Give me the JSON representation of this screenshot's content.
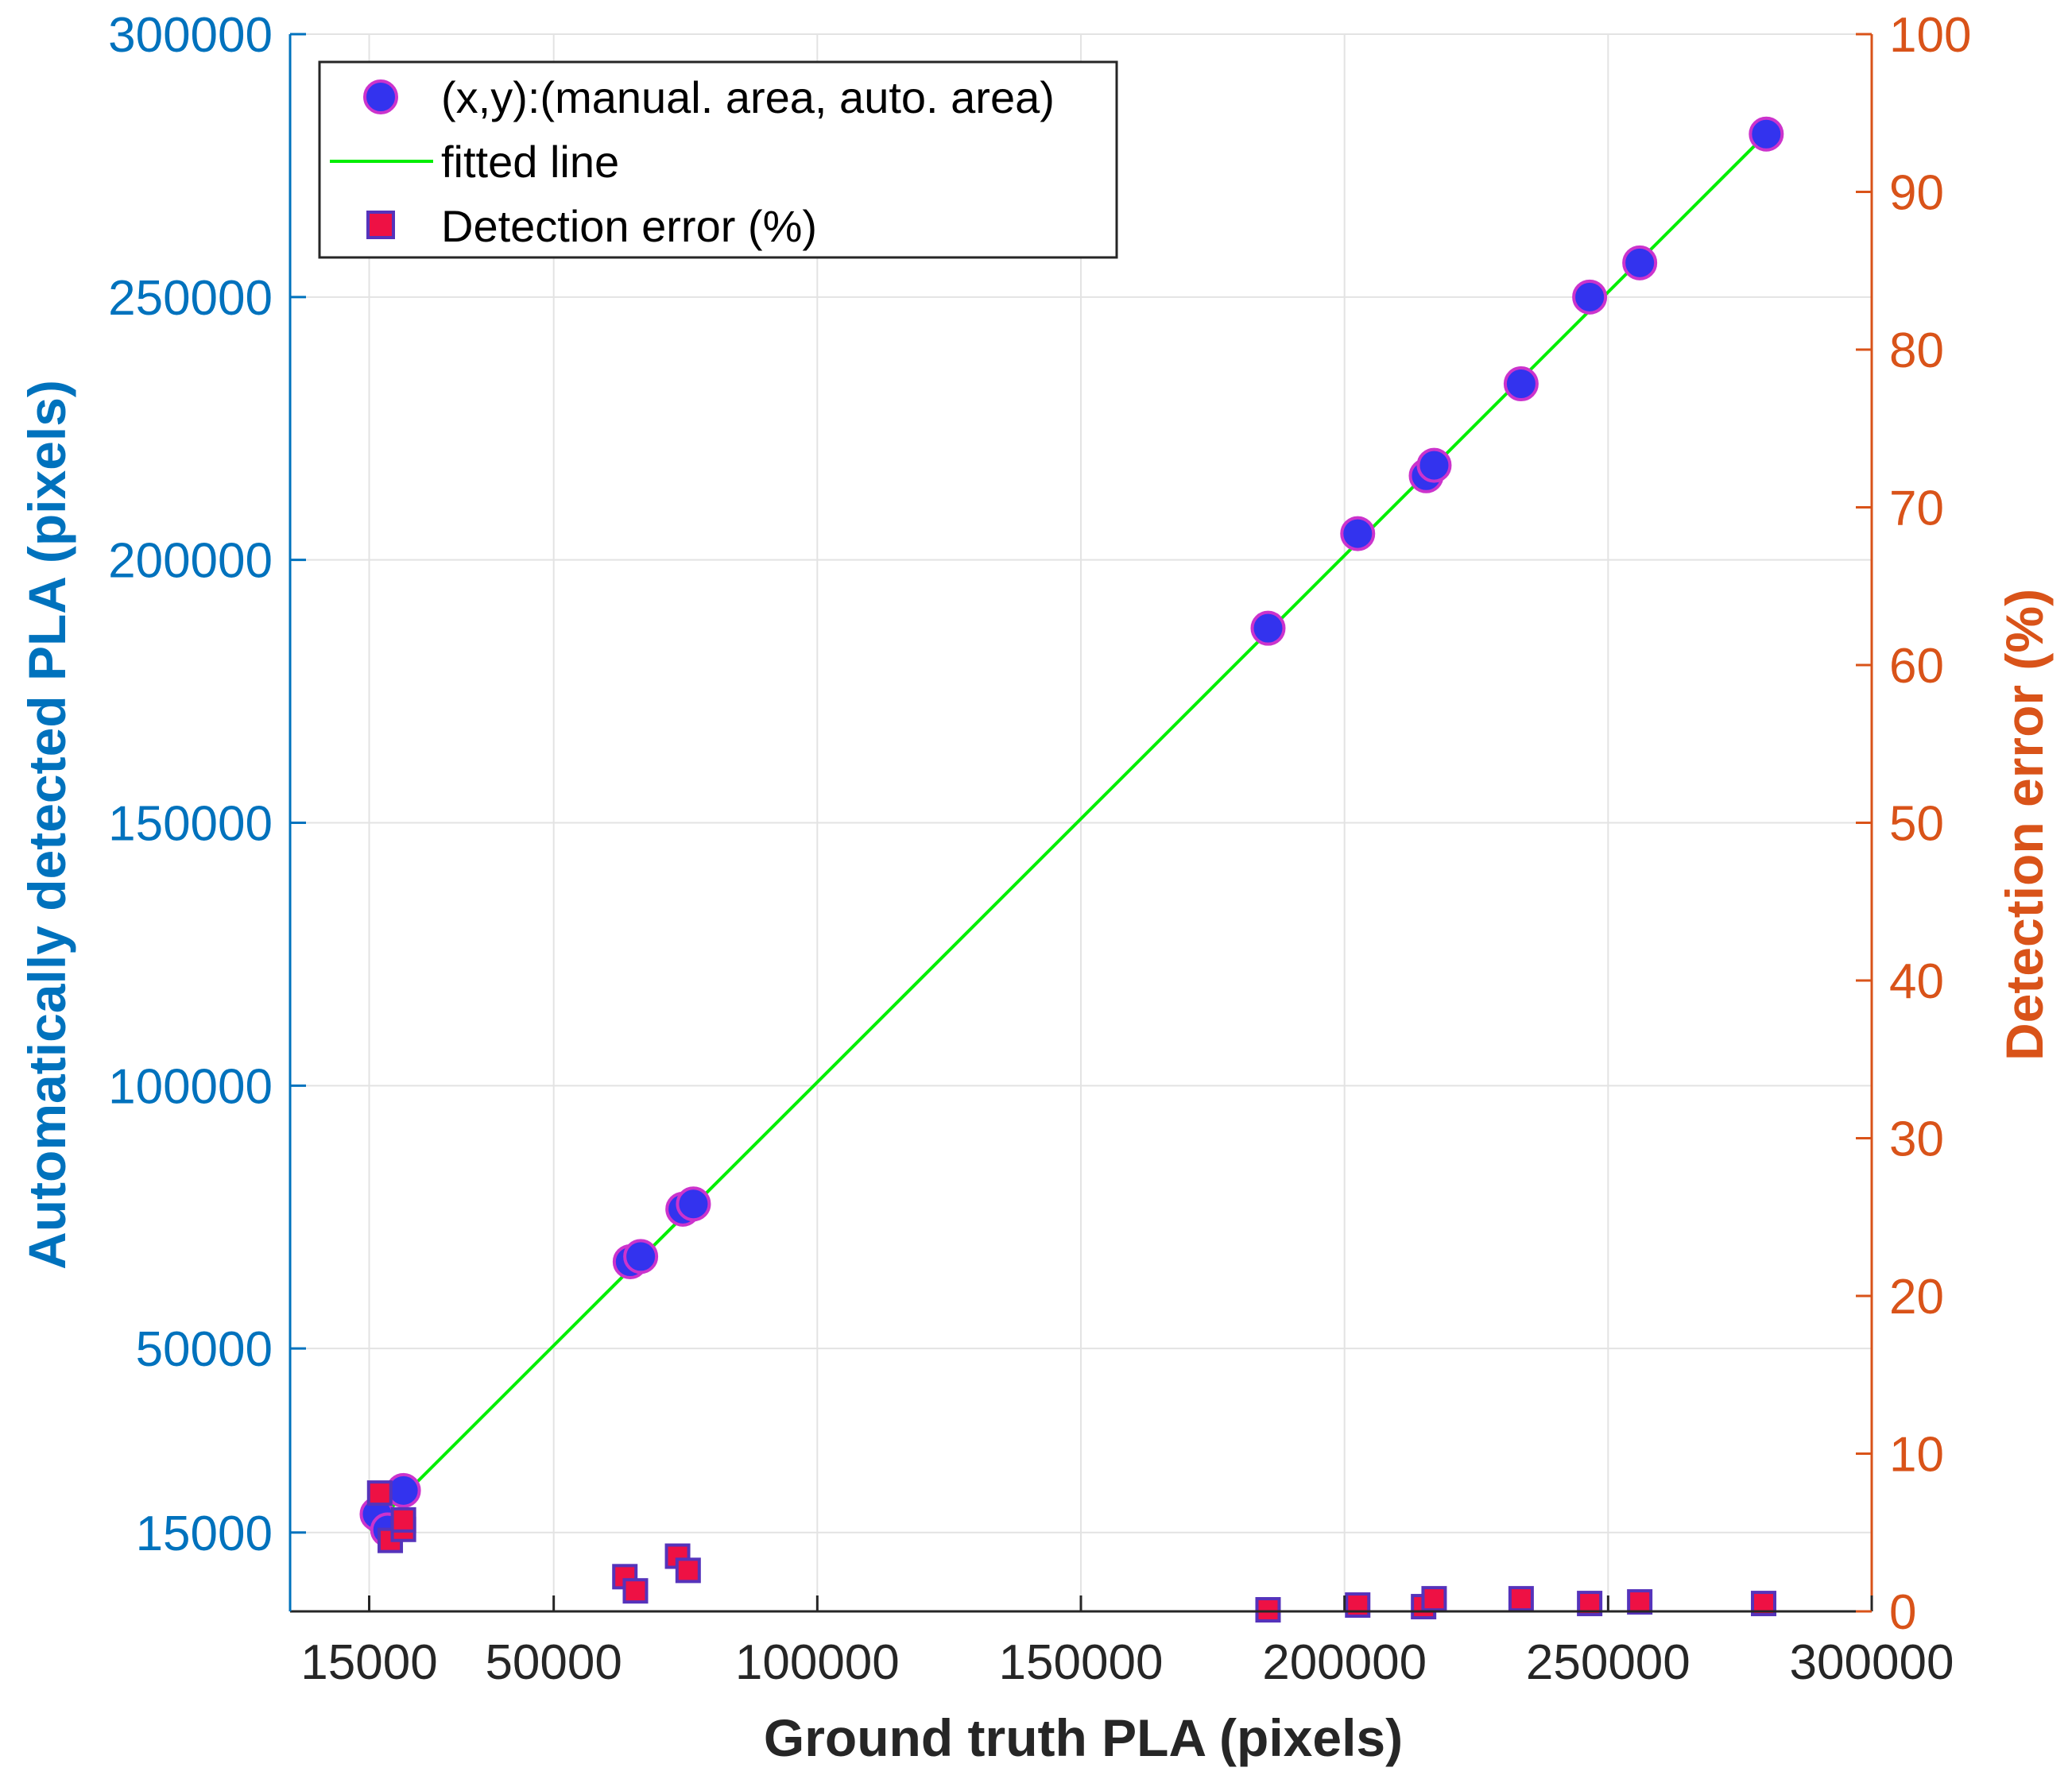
{
  "chart_data": {
    "type": "scatter",
    "title": "",
    "xlabel": "Ground truth PLA (pixels)",
    "ylabel_left": "Automatically detected PLA (pixels)",
    "ylabel_right": "Detection error (%)",
    "xlim": [
      0,
      300000
    ],
    "ylim_left": [
      0,
      300000
    ],
    "ylim_right": [
      0,
      100
    ],
    "x_ticks": [
      15000,
      50000,
      100000,
      150000,
      200000,
      250000,
      300000
    ],
    "y_left_ticks": [
      15000,
      50000,
      100000,
      150000,
      200000,
      250000,
      300000
    ],
    "y_right_ticks": [
      0,
      10,
      20,
      30,
      40,
      50,
      60,
      70,
      80,
      90,
      100
    ],
    "grid": true,
    "legend_position": "top-left",
    "series": [
      {
        "name": "(x,y):(manual. area, auto. area)",
        "axis": "left",
        "marker": "circle",
        "color": "#3333EE",
        "edge_color": "#CC33CC",
        "x": [
          16500,
          18500,
          21500,
          64500,
          66500,
          74500,
          76500,
          185500,
          202500,
          215500,
          217000,
          233500,
          246500,
          256000,
          280000
        ],
        "y": [
          18500,
          15500,
          23000,
          66500,
          67500,
          76500,
          77500,
          187000,
          205000,
          216000,
          218000,
          233500,
          250000,
          256500,
          281000
        ]
      },
      {
        "name": "fitted line",
        "axis": "left",
        "type": "line",
        "color": "#00EE00",
        "x": [
          15000,
          280000
        ],
        "y": [
          15500,
          281000
        ]
      },
      {
        "name": "Detection error (%)",
        "axis": "right",
        "marker": "square",
        "color": "#EE1144",
        "edge_color": "#5533BB",
        "x": [
          17000,
          19000,
          21500,
          21500,
          63500,
          65500,
          73500,
          75500,
          185500,
          202500,
          215000,
          217000,
          233500,
          246500,
          256000,
          279500
        ],
        "y": [
          7.5,
          4.5,
          5.2,
          5.8,
          2.2,
          1.3,
          3.5,
          2.6,
          0.1,
          0.4,
          0.3,
          0.8,
          0.8,
          0.5,
          0.6,
          0.5
        ]
      }
    ]
  }
}
